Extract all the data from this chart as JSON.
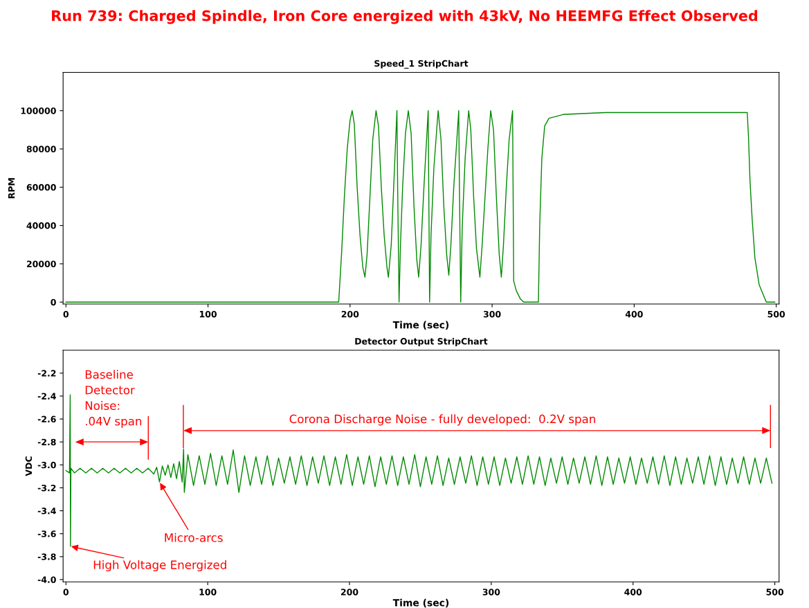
{
  "chart_data": [
    {
      "type": "line",
      "title": "Run 739: Charged Spindle, Iron Core energized with 43kV, No HEEMFG Effect Observed",
      "subtitle": "Speed_1 StripChart",
      "xlabel": "Time (sec)",
      "ylabel": "RPM",
      "xlim": [
        -2,
        502
      ],
      "xticks": [
        0,
        100,
        200,
        300,
        400,
        500
      ],
      "ylim": [
        -1000,
        120000
      ],
      "yticks": [
        0,
        20000,
        40000,
        60000,
        80000,
        100000
      ],
      "grid": false,
      "legend": false,
      "series": [
        {
          "color": "#008a00",
          "x": [
            0,
            192,
            194,
            196,
            198,
            200,
            201.5,
            203,
            205,
            207,
            209,
            210.5,
            212,
            214,
            216,
            218.3,
            220,
            222,
            224,
            226,
            227,
            229,
            231,
            233,
            233.5,
            234.5,
            235.5,
            237,
            239,
            241,
            243,
            245,
            247,
            248.3,
            250,
            252,
            255,
            255.5,
            256,
            257,
            259,
            262,
            264,
            266,
            268,
            269.5,
            271,
            273,
            276.5,
            277,
            277.9,
            279,
            281,
            283.5,
            285,
            287,
            289,
            291.4,
            293,
            295,
            297,
            299,
            301,
            303,
            305,
            306.5,
            308,
            310,
            312,
            314.4,
            315.2,
            317,
            320,
            322.3,
            332.6,
            333.5,
            335,
            337,
            340,
            350,
            380,
            420,
            460,
            479.6,
            480.5,
            481.5,
            483,
            485,
            488,
            493,
            499
          ],
          "values": [
            0,
            0,
            25000,
            55000,
            80000,
            95000,
            100000,
            93000,
            60000,
            35000,
            18000,
            13000,
            25000,
            55000,
            85000,
            100000,
            92000,
            60000,
            35000,
            18000,
            13000,
            30000,
            65000,
            100000,
            60000,
            0,
            30000,
            60000,
            88000,
            100000,
            88000,
            50000,
            22000,
            13000,
            30000,
            60000,
            100000,
            50000,
            0,
            35000,
            70000,
            100000,
            85000,
            50000,
            25000,
            14000,
            30000,
            60000,
            100000,
            60000,
            0,
            40000,
            75000,
            100000,
            90000,
            55000,
            28000,
            13000,
            30000,
            55000,
            80000,
            100000,
            90000,
            55000,
            25000,
            13000,
            30000,
            60000,
            85000,
            100000,
            11000,
            6000,
            1500,
            0,
            0,
            40000,
            75000,
            92000,
            96000,
            98000,
            99000,
            99000,
            99000,
            99000,
            86000,
            64000,
            44000,
            23000,
            9000,
            0,
            0
          ]
        }
      ]
    },
    {
      "type": "line",
      "title": "Detector Output StripChart",
      "xlabel": "Time (sec)",
      "ylabel": "VDC",
      "xlim": [
        -2,
        503
      ],
      "xticks": [
        0,
        100,
        200,
        300,
        400,
        500
      ],
      "ylim": [
        -4.02,
        -2.0
      ],
      "yticks": [
        {
          "value": -4.0,
          "label": "-4.0"
        },
        -3.8,
        -3.6,
        -3.4,
        -3.2,
        {
          "value": -3.0,
          "label": "-3.0"
        },
        -2.8,
        -2.6,
        -2.4,
        -2.2
      ],
      "grid": false,
      "legend": false,
      "series": [
        {
          "color": "#008a00",
          "x": [
            0,
            2.5,
            3,
            3.2,
            3.5,
            6,
            10,
            14,
            18,
            22,
            26,
            30,
            34,
            38,
            42,
            46,
            50,
            54,
            58,
            62,
            64,
            66,
            68,
            70,
            72,
            74,
            76,
            78,
            80,
            82,
            83,
            83.5,
            86,
            90,
            94,
            98,
            102,
            106,
            110,
            114,
            118,
            122,
            126,
            130,
            134,
            138,
            142,
            146,
            150,
            154,
            158,
            162,
            166,
            170,
            174,
            178,
            182,
            186,
            190,
            194,
            198,
            202,
            206,
            210,
            214,
            218,
            222,
            226,
            230,
            234,
            238,
            242,
            246,
            250,
            254,
            258,
            262,
            266,
            270,
            274,
            278,
            282,
            286,
            290,
            294,
            298,
            302,
            306,
            310,
            314,
            318,
            322,
            326,
            330,
            334,
            338,
            342,
            346,
            350,
            354,
            358,
            362,
            366,
            370,
            374,
            378,
            382,
            386,
            390,
            394,
            398,
            402,
            406,
            410,
            414,
            418,
            422,
            426,
            430,
            434,
            438,
            442,
            446,
            450,
            454,
            458,
            462,
            466,
            470,
            474,
            478,
            482,
            486,
            490,
            494,
            498
          ],
          "values": [
            -3.05,
            -3.07,
            -2.39,
            -3.71,
            -3.03,
            -3.07,
            -3.03,
            -3.07,
            -3.03,
            -3.07,
            -3.03,
            -3.07,
            -3.03,
            -3.07,
            -3.03,
            -3.07,
            -3.03,
            -3.07,
            -3.03,
            -3.08,
            -3.02,
            -3.15,
            -3.01,
            -3.09,
            -3.0,
            -3.11,
            -2.99,
            -3.12,
            -2.97,
            -3.15,
            -2.86,
            -3.24,
            -2.91,
            -3.18,
            -2.92,
            -3.17,
            -2.9,
            -3.18,
            -2.92,
            -3.17,
            -2.87,
            -3.24,
            -2.92,
            -3.18,
            -2.93,
            -3.17,
            -2.92,
            -3.18,
            -2.94,
            -3.16,
            -2.93,
            -3.17,
            -2.92,
            -3.18,
            -2.93,
            -3.16,
            -2.92,
            -3.18,
            -2.93,
            -3.17,
            -2.91,
            -3.18,
            -2.93,
            -3.17,
            -2.92,
            -3.19,
            -2.93,
            -3.17,
            -2.92,
            -3.18,
            -2.93,
            -3.17,
            -2.91,
            -3.19,
            -2.93,
            -3.17,
            -2.92,
            -3.18,
            -2.94,
            -3.17,
            -2.93,
            -3.16,
            -2.92,
            -3.18,
            -2.93,
            -3.17,
            -2.93,
            -3.18,
            -2.94,
            -3.16,
            -2.93,
            -3.17,
            -2.92,
            -3.17,
            -2.93,
            -3.18,
            -2.94,
            -3.16,
            -2.93,
            -3.17,
            -2.94,
            -3.16,
            -2.93,
            -3.17,
            -2.92,
            -3.18,
            -2.93,
            -3.17,
            -2.94,
            -3.16,
            -2.93,
            -3.17,
            -2.94,
            -3.16,
            -2.93,
            -3.17,
            -2.92,
            -3.18,
            -2.93,
            -3.17,
            -2.94,
            -3.16,
            -2.93,
            -3.17,
            -2.92,
            -3.18,
            -2.93,
            -3.17,
            -2.94,
            -3.16,
            -2.93,
            -3.17,
            -2.94,
            -3.16,
            -2.94,
            -3.16
          ]
        }
      ],
      "annotations": [
        "Baseline\nDetector\nNoise:\n.04V span",
        "Corona Discharge Noise - fully developed:  0.2V span",
        {
          "text": "Micro-arcs",
          "x": 66,
          "y": -3.15
        },
        {
          "text": "High Voltage Energized",
          "x": 3,
          "y": -3.71
        }
      ]
    }
  ]
}
